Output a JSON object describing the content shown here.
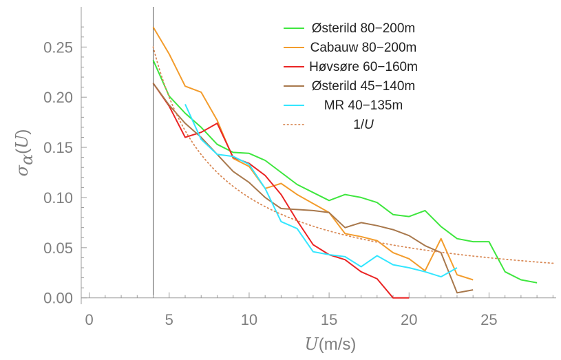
{
  "chart_data": {
    "type": "line",
    "xlabel": {
      "var": "U",
      "unit": "(m/s)"
    },
    "ylabel": {
      "sigma": "σ",
      "sub": "α",
      "open": "(",
      "var": "U",
      "close": ")"
    },
    "xlim": [
      -0.5,
      29.2
    ],
    "ylim": [
      -0.005,
      0.29
    ],
    "xticks": [
      0,
      5,
      10,
      15,
      20,
      25
    ],
    "xtick_labels": [
      "0",
      "5",
      "10",
      "15",
      "20",
      "25"
    ],
    "yticks": [
      0.0,
      0.05,
      0.1,
      0.15,
      0.2,
      0.25
    ],
    "ytick_labels": [
      "0.00",
      "0.05",
      "0.10",
      "0.15",
      "0.20",
      "0.25"
    ],
    "vertical_line_x": 4,
    "legend_position": "top-right",
    "series": [
      {
        "name": "Østerild 80−200m",
        "color": "#3ee63e",
        "style": "solid",
        "x": [
          4,
          5,
          6,
          7,
          8,
          9,
          10,
          11,
          12,
          13,
          14,
          15,
          16,
          17,
          18,
          19,
          20,
          21,
          22,
          23,
          24,
          25,
          26,
          27,
          28
        ],
        "y": [
          0.237,
          0.201,
          0.184,
          0.17,
          0.153,
          0.145,
          0.144,
          0.137,
          0.125,
          0.113,
          0.105,
          0.097,
          0.103,
          0.1,
          0.095,
          0.083,
          0.081,
          0.087,
          0.071,
          0.059,
          0.056,
          0.056,
          0.026,
          0.018,
          0.015
        ]
      },
      {
        "name": "Cabauw 80−200m",
        "color": "#f39c2c",
        "style": "solid",
        "x": [
          4,
          5,
          6,
          7,
          8,
          9,
          10,
          11,
          12,
          13,
          14,
          15,
          16,
          17,
          18,
          19,
          20,
          21,
          22,
          23,
          24
        ],
        "y": [
          0.27,
          0.243,
          0.211,
          0.205,
          0.177,
          0.139,
          0.131,
          0.109,
          0.114,
          0.103,
          0.094,
          0.085,
          0.064,
          0.061,
          0.057,
          0.045,
          0.039,
          0.027,
          0.059,
          0.023,
          0.018
        ]
      },
      {
        "name": "Høvsøre 60−160m",
        "color": "#ea2424",
        "style": "solid",
        "x": [
          4,
          5,
          6,
          7,
          8,
          9,
          10,
          11,
          12,
          13,
          14,
          15,
          16,
          17,
          18,
          19,
          20
        ],
        "y": [
          0.214,
          0.191,
          0.16,
          0.165,
          0.174,
          0.14,
          0.134,
          0.122,
          0.103,
          0.077,
          0.053,
          0.043,
          0.038,
          0.026,
          0.019,
          0.0,
          0.0
        ]
      },
      {
        "name": "Østerild 45−140m",
        "color": "#a8784c",
        "style": "solid",
        "x": [
          4,
          5,
          6,
          7,
          8,
          9,
          10,
          11,
          12,
          13,
          14,
          15,
          16,
          17,
          18,
          19,
          20,
          21,
          22,
          23,
          24
        ],
        "y": [
          0.214,
          0.192,
          0.174,
          0.16,
          0.143,
          0.126,
          0.115,
          0.1,
          0.089,
          0.088,
          0.087,
          0.085,
          0.07,
          0.075,
          0.072,
          0.068,
          0.062,
          0.052,
          0.045,
          0.005,
          0.008
        ]
      },
      {
        "name": "MR 40−135m",
        "color": "#33e6ff",
        "style": "solid",
        "x": [
          6,
          7,
          8,
          9,
          10,
          11,
          12,
          13,
          14,
          15,
          16,
          17,
          18,
          19,
          20,
          21,
          22,
          23
        ],
        "y": [
          0.193,
          0.158,
          0.143,
          0.141,
          0.133,
          0.109,
          0.076,
          0.069,
          0.046,
          0.043,
          0.041,
          0.031,
          0.042,
          0.033,
          0.03,
          0.026,
          0.021,
          0.03
        ]
      },
      {
        "name": "1/U",
        "color": "#d98a57",
        "style": "dotted",
        "function": "1/U",
        "domain": [
          4,
          29.2
        ]
      }
    ]
  }
}
